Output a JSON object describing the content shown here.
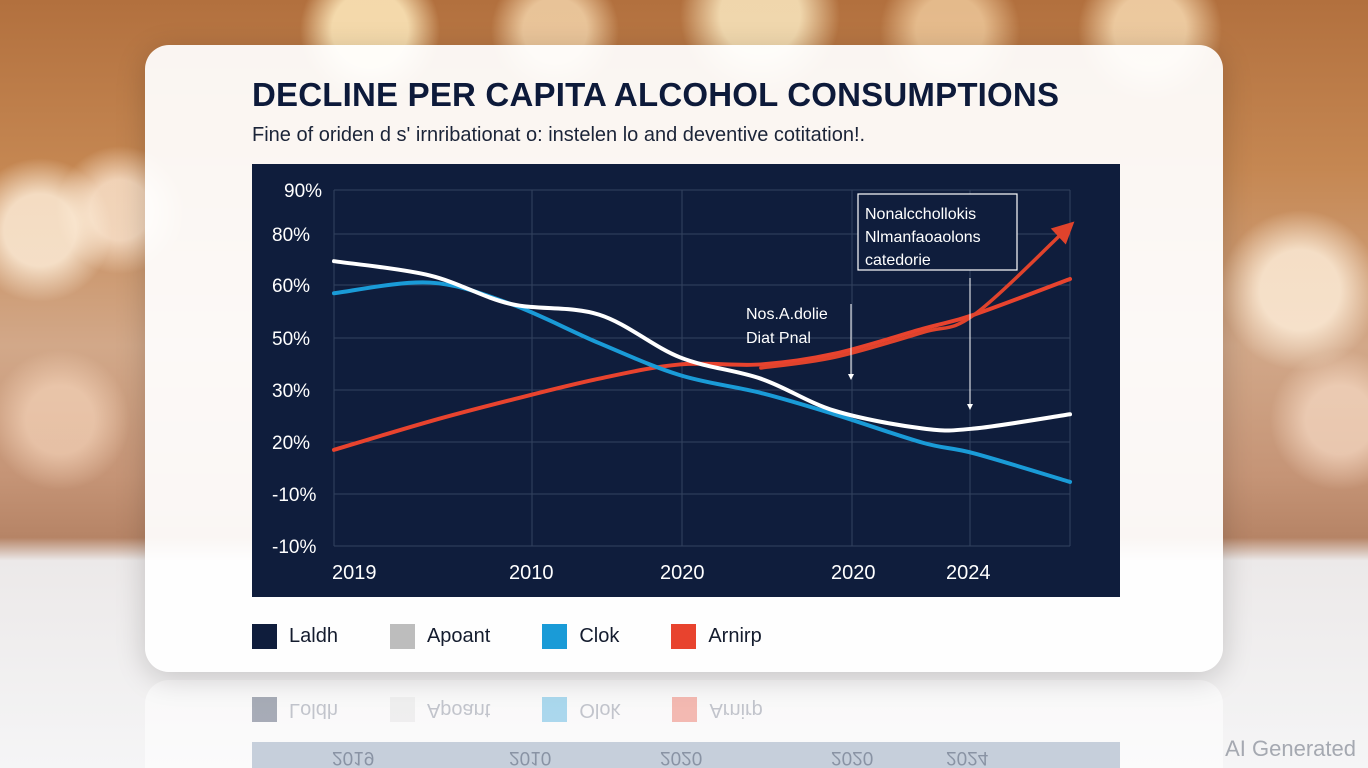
{
  "chart_data": {
    "type": "line",
    "title": "DECLINE PER CAPITA ALCOHOL CONSUMPTIONS",
    "subtitle": "Fine of oriden d s' irnribationat o: instelen lo and deventive cotitation!.",
    "x_tick_labels": [
      "2019",
      "2010",
      "2020",
      "2020",
      "2024"
    ],
    "y_tick_labels": [
      "90%",
      "80%",
      "60%",
      "50%",
      "30%",
      "20%",
      "-10%",
      "-10%"
    ],
    "ylim": [
      -10,
      90
    ],
    "grid": true,
    "legend_position": "bottom",
    "series": [
      {
        "name": "Laldh",
        "color": "#ffffff",
        "points": [
          [
            0,
            70
          ],
          [
            0.13,
            66
          ],
          [
            0.24,
            58
          ],
          [
            0.36,
            55
          ],
          [
            0.47,
            43
          ],
          [
            0.58,
            37
          ],
          [
            0.68,
            28
          ],
          [
            0.8,
            23
          ],
          [
            0.87,
            23
          ],
          [
            1,
            27
          ]
        ]
      },
      {
        "name": "Clok",
        "color": "#1a9bd7",
        "points": [
          [
            0,
            61
          ],
          [
            0.13,
            64
          ],
          [
            0.24,
            58
          ],
          [
            0.36,
            47
          ],
          [
            0.47,
            38
          ],
          [
            0.58,
            33
          ],
          [
            0.68,
            27
          ],
          [
            0.8,
            19
          ],
          [
            0.87,
            16
          ],
          [
            1,
            8
          ]
        ]
      },
      {
        "name": "Arnirp",
        "color": "#e8432e",
        "points": [
          [
            0,
            17
          ],
          [
            0.13,
            25
          ],
          [
            0.24,
            31
          ],
          [
            0.36,
            37
          ],
          [
            0.47,
            41
          ],
          [
            0.58,
            41
          ],
          [
            0.68,
            44
          ],
          [
            0.8,
            51
          ],
          [
            0.87,
            55
          ],
          [
            1,
            65
          ]
        ]
      },
      {
        "name": "Apoant",
        "color": "#e0432c",
        "points": [
          [
            0.58,
            40
          ],
          [
            0.68,
            43
          ],
          [
            0.8,
            50
          ],
          [
            0.87,
            55
          ],
          [
            1,
            80
          ]
        ]
      }
    ],
    "annotations": [
      {
        "lines": [
          "Nonalcchollokis",
          "Nlmanfaoaolons",
          "catedorie"
        ]
      },
      {
        "lines": [
          "Nos.A.dolie",
          "Diat Pnal"
        ]
      }
    ]
  },
  "legend": [
    {
      "label": "Laldh",
      "color": "#0f1d3c"
    },
    {
      "label": "Apoant",
      "color": "#bdbdbd"
    },
    {
      "label": "Clok",
      "color": "#1a9bd7"
    },
    {
      "label": "Arnirp",
      "color": "#e8432e"
    }
  ],
  "reflection": {
    "legend": [
      "Loldh",
      "Apoant",
      "Olok",
      "Arnirp"
    ],
    "x_ticks": [
      "2019",
      "2010",
      "2020",
      "2020",
      "2024"
    ]
  },
  "watermark": "AI Generated"
}
